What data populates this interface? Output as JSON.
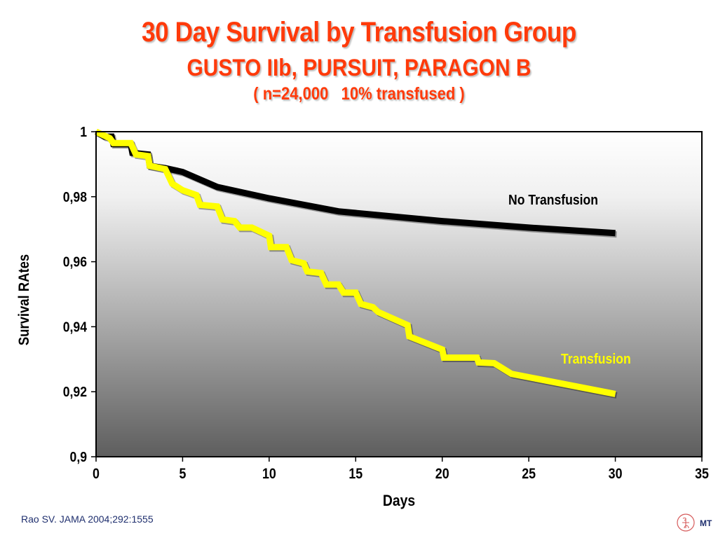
{
  "slide": {
    "title": "30 Day Survival by Transfusion Group",
    "subtitle": "GUSTO IIb, PURSUIT, PARAGON B",
    "subtitle2": "( n=24,000   10% transfused )",
    "reference": "Rao SV. JAMA 2004;292:1555",
    "logo_text": "MT"
  },
  "chart_data": {
    "type": "line",
    "title": "30 Day Survival by Transfusion Group",
    "xlabel": "Days",
    "ylabel": "Survival RAtes",
    "xlim": [
      0,
      35
    ],
    "ylim": [
      0.9,
      1
    ],
    "xticks": [
      0,
      5,
      10,
      15,
      20,
      25,
      30,
      35
    ],
    "xtick_labels": [
      "0",
      "5",
      "10",
      "15",
      "20",
      "25",
      "30",
      "35"
    ],
    "yticks": [
      0.9,
      0.92,
      0.94,
      0.96,
      0.98,
      1
    ],
    "ytick_labels": [
      "0,9",
      "0,92",
      "0,94",
      "0,96",
      "0,98",
      "1"
    ],
    "grid": false,
    "series": [
      {
        "name": "No Transfusion",
        "color": "#000000",
        "x": [
          0,
          0.5,
          0.9,
          1.0,
          2.0,
          2.1,
          3.0,
          3.1,
          4.0,
          5.0,
          7.0,
          10.0,
          14.0,
          20.0,
          25.0,
          30.0
        ],
        "y": [
          1.0,
          0.9985,
          0.9985,
          0.9962,
          0.9962,
          0.9935,
          0.993,
          0.9895,
          0.9888,
          0.9876,
          0.983,
          0.9795,
          0.9755,
          0.9725,
          0.9705,
          0.9688
        ]
      },
      {
        "name": "Transfusion",
        "color": "#ffff00",
        "x": [
          0,
          0.8,
          1.0,
          2.0,
          2.3,
          3.0,
          3.1,
          4.0,
          4.4,
          5.0,
          5.8,
          6.0,
          7.0,
          7.3,
          8.0,
          8.3,
          9.0,
          10.0,
          10.1,
          11.0,
          11.3,
          12.0,
          12.2,
          13.0,
          13.3,
          14.0,
          14.3,
          15.0,
          15.3,
          16.0,
          16.3,
          18.0,
          18.1,
          20.0,
          20.1,
          22.0,
          22.1,
          23.0,
          24.0,
          30.0
        ],
        "y": [
          1.0,
          0.998,
          0.9965,
          0.9965,
          0.993,
          0.9925,
          0.9895,
          0.9885,
          0.984,
          0.982,
          0.9805,
          0.9775,
          0.977,
          0.973,
          0.9725,
          0.9705,
          0.9705,
          0.968,
          0.9645,
          0.9645,
          0.9605,
          0.9595,
          0.957,
          0.9565,
          0.953,
          0.953,
          0.9505,
          0.9505,
          0.947,
          0.946,
          0.9445,
          0.9405,
          0.937,
          0.933,
          0.9305,
          0.9305,
          0.929,
          0.9288,
          0.9255,
          0.9193
        ]
      }
    ],
    "annotations": [
      {
        "text": "No Transfusion",
        "series": "No Transfusion",
        "color": "#000000"
      },
      {
        "text": "Transfusion",
        "series": "Transfusion",
        "color": "#ffff00"
      }
    ]
  }
}
